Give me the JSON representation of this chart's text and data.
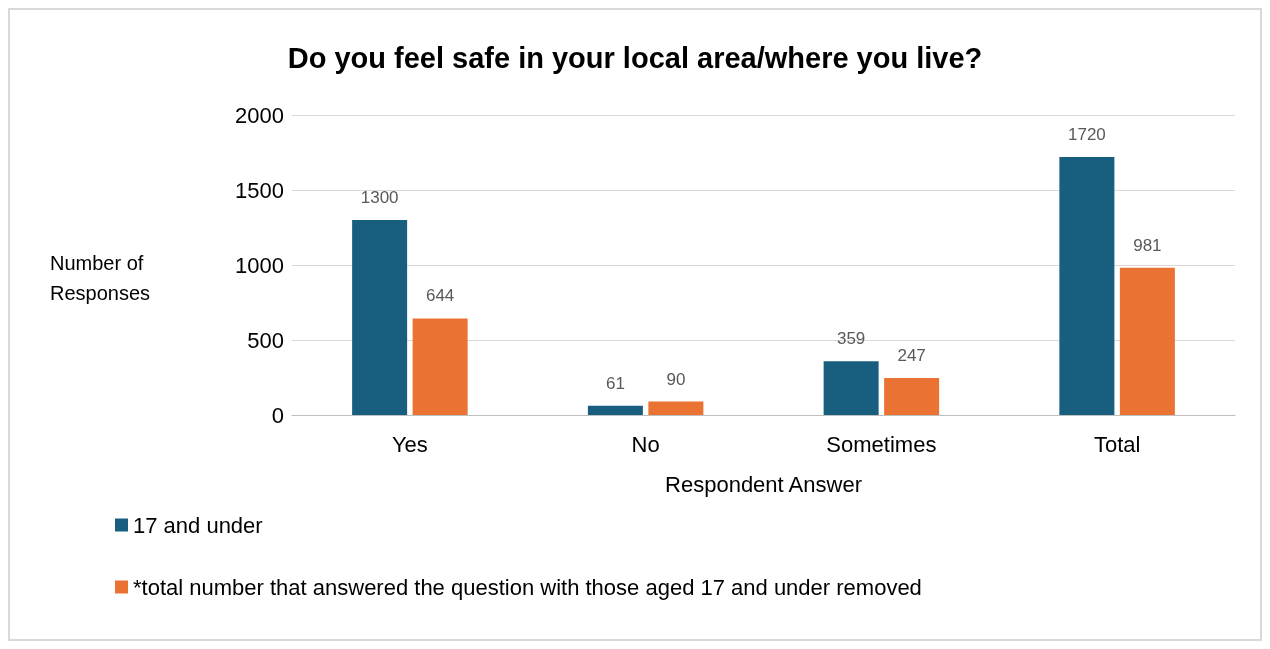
{
  "chart_data": {
    "type": "bar",
    "title": "Do you feel safe in your local area/where you live?",
    "xlabel": "Respondent Answer",
    "ylabel": "Number of\nResponses",
    "categories": [
      "Yes",
      "No",
      "Sometimes",
      "Total"
    ],
    "series": [
      {
        "name": "17 and under",
        "color": "#175e7f",
        "values": [
          1300,
          61,
          359,
          1720
        ]
      },
      {
        "name": "*total number that answered the question with those aged 17 and under removed",
        "color": "#ea7333",
        "values": [
          644,
          90,
          247,
          981
        ]
      }
    ],
    "ylim": [
      0,
      2000
    ],
    "yticks": [
      0,
      500,
      1000,
      1500,
      2000
    ],
    "grid": "y",
    "legend": "bottom left",
    "data_labels": true
  }
}
